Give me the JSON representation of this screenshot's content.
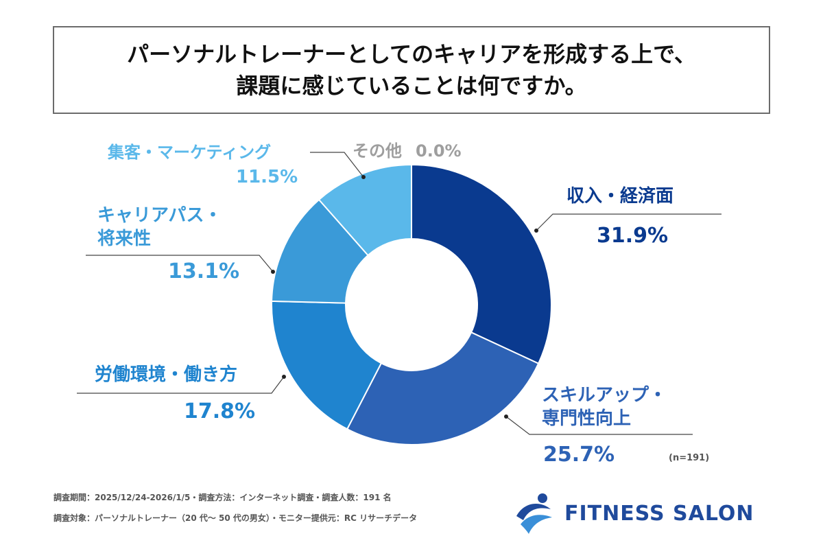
{
  "title": {
    "line1": "パーソナルトレーナーとしてのキャリアを形成する上で、",
    "line2": "課題に感じていることは何ですか。"
  },
  "chart_data": {
    "type": "pie",
    "donut": true,
    "unit": "%",
    "categories": [
      "収入・経済面",
      "スキルアップ・専門性向上",
      "労働環境・働き方",
      "キャリアパス・将来性",
      "集客・マーケティング",
      "その他"
    ],
    "values": [
      31.9,
      25.7,
      17.8,
      13.1,
      11.5,
      0.0
    ],
    "colors": [
      "#0a3a8f",
      "#2d62b5",
      "#1f84cf",
      "#3a9ad8",
      "#5ab8ea",
      "#9e9e9e"
    ],
    "labels": [
      {
        "line1": "収入・経済面",
        "line2": "",
        "value_text": "31.9%"
      },
      {
        "line1": "スキルアップ・",
        "line2": "専門性向上",
        "value_text": "25.7%"
      },
      {
        "line1": "労働環境・働き方",
        "line2": "",
        "value_text": "17.8%"
      },
      {
        "line1": "キャリアパス・",
        "line2": "将来性",
        "value_text": "13.1%"
      },
      {
        "line1": "集客・マーケティング",
        "line2": "",
        "value_text": "11.5%"
      },
      {
        "line1": "その他",
        "line2": "",
        "value_text": "0.0%"
      }
    ],
    "sample_size": "(n=191)"
  },
  "footer": {
    "line1": "調査期間：2025/12/24-2026/1/5・調査方法：インターネット調査・調査人数：191 名",
    "line2": "調査対象：パーソナルトレーナー（20 代～ 50 代の男女）・モニター提供元：RC リサーチデータ"
  },
  "logo": {
    "text": "FITNESS SALON",
    "icon": "fitness-salon-logo-icon",
    "color": "#1f4a9c"
  }
}
